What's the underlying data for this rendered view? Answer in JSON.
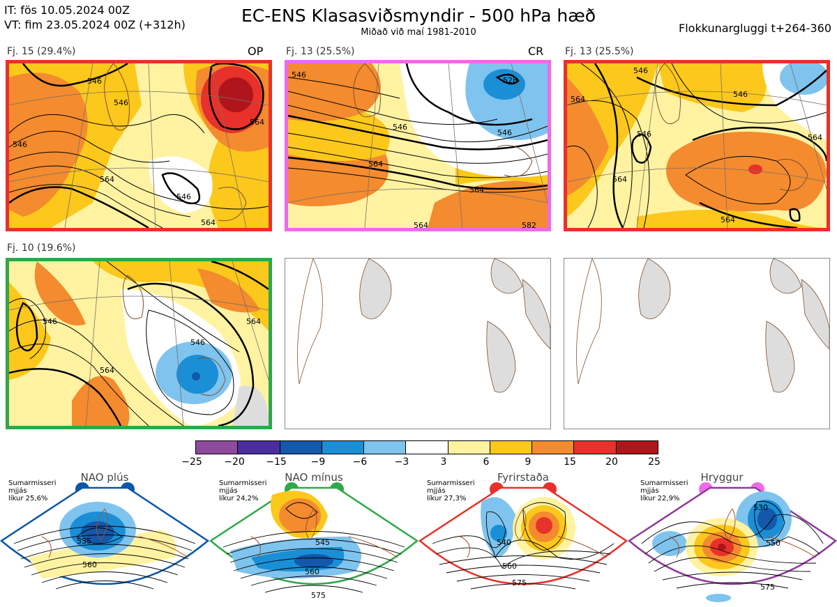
{
  "header": {
    "it_line": "IT: fös 10.05.2024 00Z",
    "vt_line": "VT: fim 23.05.2024 00Z  (+312h)",
    "title": "EC-ENS Klasasviðsmyndir - 500 hPa hæð",
    "subtitle": "Miðað við maí 1981-2010",
    "window": "Flokkunargluggi t+264-360"
  },
  "panels": [
    {
      "label": "Fj. 15 (29.4%)",
      "tag": "OP",
      "border": "#e8312a",
      "contours": [
        "546",
        "546",
        "546",
        "564",
        "546",
        "564",
        "564"
      ]
    },
    {
      "label": "Fj. 13 (25.5%)",
      "tag": "CR",
      "border": "#ee6ae8",
      "contours": [
        "546",
        "528",
        "546",
        "546",
        "564",
        "564",
        "564",
        "582"
      ]
    },
    {
      "label": "Fj. 13 (25.5%)",
      "tag": "",
      "border": "#e8312a",
      "contours": [
        "546",
        "546",
        "546",
        "564",
        "564",
        "564",
        "564"
      ]
    },
    {
      "label": "Fj. 10 (19.6%)",
      "tag": "",
      "border": "#2ea84a",
      "contours": [
        "546",
        "546",
        "564",
        "564"
      ]
    }
  ],
  "colorbar": {
    "ticks": [
      "−25",
      "−20",
      "−15",
      "−9",
      "−6",
      "−3",
      "3",
      "6",
      "9",
      "15",
      "20",
      "25"
    ],
    "colors": [
      "#8e4a9c",
      "#4a2f9c",
      "#1557a8",
      "#1a8fd6",
      "#7fc4ee",
      "#ffffff",
      "#fff3a2",
      "#fbc81b",
      "#f48b2e",
      "#e8312a",
      "#b0151c"
    ]
  },
  "regimes": [
    {
      "name": "NAO plús",
      "note": [
        "Sumarmisseri",
        "mjjás",
        "líkur 25,6%"
      ],
      "color": "#0a56a8",
      "contours": [
        "535",
        "560"
      ]
    },
    {
      "name": "NAO mínus",
      "note": [
        "Sumarmisseri",
        "mjjás",
        "líkur 24,2%"
      ],
      "color": "#2ea84a",
      "contours": [
        "545",
        "560",
        "575"
      ]
    },
    {
      "name": "Fyrirstaða",
      "note": [
        "Sumarmisseri",
        "mjjás",
        "líkur 27,3%"
      ],
      "color": "#e8312a",
      "contours": [
        "540",
        "560",
        "575"
      ]
    },
    {
      "name": "Hryggur",
      "note": [
        "Sumarmisseri",
        "mjjás",
        "líkur 22,9%"
      ],
      "color": "#ee6ae8",
      "contours": [
        "530",
        "550",
        "575"
      ]
    }
  ]
}
